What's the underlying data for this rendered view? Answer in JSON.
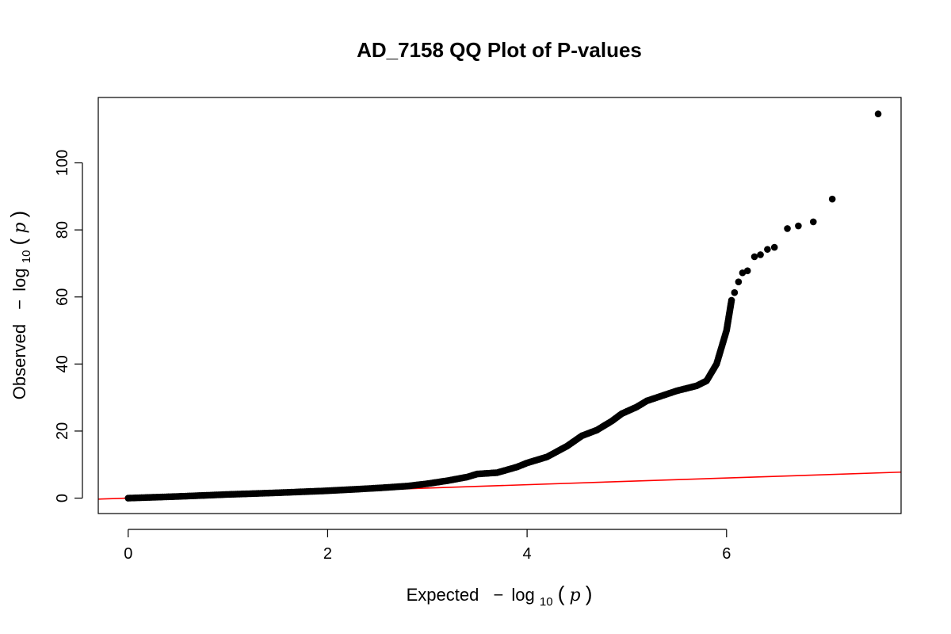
{
  "chart_data": {
    "type": "scatter",
    "title": "AD_7158 QQ Plot of P-values",
    "xlabel": {
      "prefix": "Expected",
      "minus": "−",
      "log": "log",
      "sub": "10",
      "open": "(",
      "var": "p",
      "close": ")"
    },
    "ylabel": {
      "prefix": "Observed",
      "minus": "−",
      "log": "log",
      "sub": "10",
      "open": "(",
      "var": "p",
      "close": ")"
    },
    "xlim": [
      -0.3,
      7.75
    ],
    "ylim": [
      -4.6,
      119.5
    ],
    "xticks": [
      0,
      2,
      4,
      6
    ],
    "yticks": [
      0,
      20,
      40,
      60,
      80,
      100
    ],
    "grid": false,
    "point_color": "#000000",
    "line_color": "#ff0000",
    "reference_line": {
      "intercept": 0,
      "slope": 1
    },
    "curve": [
      [
        0,
        0
      ],
      [
        0.5,
        0.5
      ],
      [
        1,
        1.1
      ],
      [
        1.5,
        1.6
      ],
      [
        2,
        2.2
      ],
      [
        2.5,
        3.0
      ],
      [
        2.8,
        3.6
      ],
      [
        3.0,
        4.3
      ],
      [
        3.2,
        5.2
      ],
      [
        3.4,
        6.3
      ],
      [
        3.5,
        7.2
      ],
      [
        3.7,
        7.6
      ],
      [
        3.9,
        9.3
      ],
      [
        4.0,
        10.5
      ],
      [
        4.2,
        12.3
      ],
      [
        4.4,
        15.5
      ],
      [
        4.55,
        18.6
      ],
      [
        4.7,
        20.3
      ],
      [
        4.85,
        23.0
      ],
      [
        4.95,
        25.2
      ],
      [
        5.1,
        27.2
      ],
      [
        5.2,
        29.0
      ],
      [
        5.35,
        30.5
      ],
      [
        5.5,
        32.0
      ],
      [
        5.7,
        33.5
      ],
      [
        5.8,
        35.0
      ],
      [
        5.9,
        40.0
      ],
      [
        6.0,
        50.0
      ],
      [
        6.05,
        59.0
      ]
    ],
    "points": [
      [
        6.08,
        61.3
      ],
      [
        6.12,
        64.5
      ],
      [
        6.16,
        67.2
      ],
      [
        6.21,
        67.8
      ],
      [
        6.28,
        72.0
      ],
      [
        6.34,
        72.6
      ],
      [
        6.41,
        74.2
      ],
      [
        6.48,
        74.8
      ],
      [
        6.61,
        80.4
      ],
      [
        6.72,
        81.2
      ],
      [
        6.87,
        82.4
      ],
      [
        7.06,
        89.2
      ],
      [
        7.52,
        114.6
      ]
    ]
  }
}
